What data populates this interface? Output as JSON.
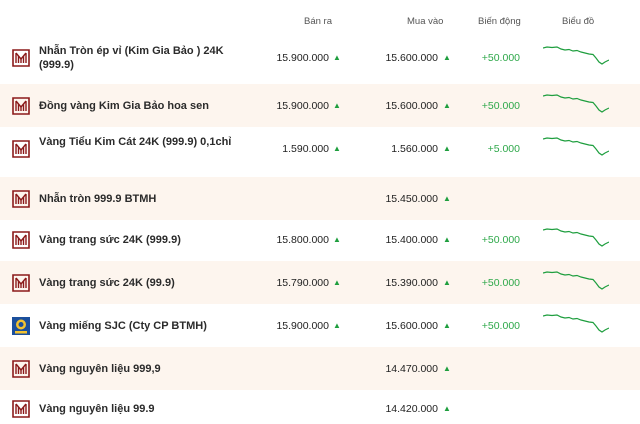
{
  "header": {
    "sell": "Bán ra",
    "buy": "Mua vào",
    "change": "Biến động",
    "chart": "Biểu đồ"
  },
  "colors": {
    "brand": "#8b1a1a",
    "up": "#1e9e3e",
    "row_alt": "#fdf5ee"
  },
  "rows": [
    {
      "name": "Nhẫn Tròn ép vỉ (Kim Gia Bảo ) 24K (999.9)",
      "sell": "15.900.000",
      "sell_arrow": "▲",
      "buy": "15.600.000",
      "buy_arrow": "▲",
      "change": "+50.000",
      "logo": "btmh-logo-icon",
      "chart": true
    },
    {
      "name": "Đồng vàng Kim Gia Bảo hoa sen",
      "sell": "15.900.000",
      "sell_arrow": "▲",
      "buy": "15.600.000",
      "buy_arrow": "▲",
      "change": "+50.000",
      "logo": "btmh-logo-icon",
      "chart": true
    },
    {
      "name": "Vàng Tiểu Kim Cát 24K (999.9) 0,1chỉ",
      "sell": "1.590.000",
      "sell_arrow": "▲",
      "buy": "1.560.000",
      "buy_arrow": "▲",
      "change": "+5.000",
      "logo": "btmh-logo-icon",
      "chart": true
    },
    {
      "name": "Nhẫn tròn 999.9 BTMH",
      "sell": "",
      "sell_arrow": "",
      "buy": "15.450.000",
      "buy_arrow": "▲",
      "change": "",
      "logo": "btmh-logo-icon",
      "chart": false
    },
    {
      "name": "Vàng trang sức 24K (999.9)",
      "sell": "15.800.000",
      "sell_arrow": "▲",
      "buy": "15.400.000",
      "buy_arrow": "▲",
      "change": "+50.000",
      "logo": "btmh-logo-icon",
      "chart": true
    },
    {
      "name": "Vàng trang sức 24K (99.9)",
      "sell": "15.790.000",
      "sell_arrow": "▲",
      "buy": "15.390.000",
      "buy_arrow": "▲",
      "change": "+50.000",
      "logo": "btmh-logo-icon",
      "chart": true
    },
    {
      "name": "Vàng miếng SJC (Cty CP BTMH)",
      "sell": "15.900.000",
      "sell_arrow": "▲",
      "buy": "15.600.000",
      "buy_arrow": "▲",
      "change": "+50.000",
      "logo": "sjc-logo-icon",
      "chart": true
    },
    {
      "name": "Vàng nguyên liệu 999,9",
      "sell": "",
      "sell_arrow": "",
      "buy": "14.470.000",
      "buy_arrow": "▲",
      "change": "",
      "logo": "btmh-logo-icon",
      "chart": false
    },
    {
      "name": "Vàng nguyên liệu 99.9",
      "sell": "",
      "sell_arrow": "",
      "buy": "14.420.000",
      "buy_arrow": "▲",
      "change": "",
      "logo": "btmh-logo-icon",
      "chart": false
    }
  ]
}
